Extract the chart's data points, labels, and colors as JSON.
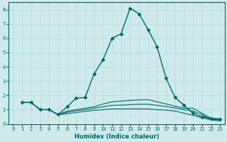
{
  "xlabel": "Humidex (Indice chaleur)",
  "ylabel": "",
  "background_color": "#ceeaea",
  "grid_color": "#b8d8d8",
  "line_color": "#006868",
  "xlim": [
    -0.5,
    23.5
  ],
  "ylim": [
    0,
    8.5
  ],
  "x_ticks": [
    0,
    1,
    2,
    3,
    4,
    5,
    6,
    7,
    8,
    9,
    10,
    11,
    12,
    13,
    14,
    15,
    16,
    17,
    18,
    19,
    20,
    21,
    22,
    23
  ],
  "y_ticks": [
    0,
    1,
    2,
    3,
    4,
    5,
    6,
    7,
    8
  ],
  "series": [
    {
      "x": [
        1,
        2,
        3,
        4,
        5,
        6,
        7,
        8,
        9,
        10,
        11,
        12,
        13,
        14,
        15,
        16,
        17,
        18,
        19,
        20,
        21,
        22,
        23
      ],
      "y": [
        1.5,
        1.5,
        1.0,
        1.0,
        0.65,
        1.2,
        1.8,
        1.85,
        3.5,
        4.5,
        6.0,
        6.3,
        8.1,
        7.7,
        6.6,
        5.4,
        3.2,
        1.85,
        1.3,
        0.75,
        0.5,
        0.4,
        0.35
      ],
      "marker": "D",
      "markersize": 2.5,
      "linewidth": 1.0
    },
    {
      "x": [
        1,
        2,
        3,
        4,
        5,
        6,
        7,
        8,
        9,
        10,
        11,
        12,
        13,
        14,
        15,
        16,
        17,
        18,
        19,
        20,
        21,
        22,
        23
      ],
      "y": [
        1.5,
        1.5,
        1.0,
        1.0,
        0.65,
        0.9,
        1.0,
        1.1,
        1.2,
        1.4,
        1.55,
        1.6,
        1.65,
        1.68,
        1.7,
        1.55,
        1.4,
        1.25,
        1.1,
        1.1,
        0.75,
        0.4,
        0.3
      ],
      "marker": null,
      "markersize": 0,
      "linewidth": 0.8
    },
    {
      "x": [
        1,
        2,
        3,
        4,
        5,
        6,
        7,
        8,
        9,
        10,
        11,
        12,
        13,
        14,
        15,
        16,
        17,
        18,
        19,
        20,
        21,
        22,
        23
      ],
      "y": [
        1.5,
        1.5,
        1.0,
        1.0,
        0.65,
        0.82,
        0.92,
        1.0,
        1.1,
        1.2,
        1.3,
        1.32,
        1.35,
        1.38,
        1.38,
        1.3,
        1.22,
        1.12,
        1.0,
        0.9,
        0.65,
        0.32,
        0.28
      ],
      "marker": null,
      "markersize": 0,
      "linewidth": 0.8
    },
    {
      "x": [
        1,
        2,
        3,
        4,
        5,
        6,
        7,
        8,
        9,
        10,
        11,
        12,
        13,
        14,
        15,
        16,
        17,
        18,
        19,
        20,
        21,
        22,
        23
      ],
      "y": [
        1.5,
        1.5,
        1.0,
        1.0,
        0.65,
        0.72,
        0.8,
        0.88,
        0.95,
        1.0,
        1.05,
        1.05,
        1.05,
        1.05,
        1.05,
        1.0,
        0.97,
        0.9,
        0.75,
        0.6,
        0.45,
        0.28,
        0.22
      ],
      "marker": null,
      "markersize": 0,
      "linewidth": 0.8
    }
  ]
}
